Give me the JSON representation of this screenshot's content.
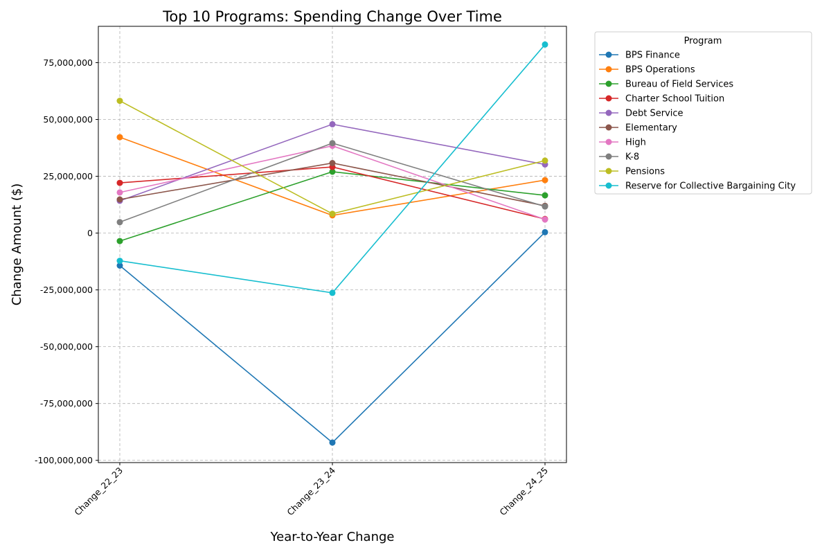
{
  "chart_data": {
    "type": "line",
    "title": "Top 10 Programs: Spending Change Over Time",
    "xlabel": "Year-to-Year Change",
    "ylabel": "Change Amount ($)",
    "categories": [
      "Change_22_23",
      "Change_23_24",
      "Change_24_25"
    ],
    "ylim": [
      -101000000,
      91000000
    ],
    "yticks": [
      -100000000,
      -75000000,
      -50000000,
      -25000000,
      0,
      25000000,
      50000000,
      75000000
    ],
    "ytick_labels": [
      "-100,000,000",
      "-75,000,000",
      "-50,000,000",
      "-25,000,000",
      "0",
      "25,000,000",
      "50,000,000",
      "75,000,000"
    ],
    "grid": true,
    "legend_title": "Program",
    "legend_position": "outside-top-right",
    "series": [
      {
        "name": "BPS Finance",
        "color": "#1f77b4",
        "values": [
          -14300000,
          -92200000,
          400000
        ]
      },
      {
        "name": "BPS Operations",
        "color": "#ff7f0e",
        "values": [
          42200000,
          7800000,
          23300000
        ]
      },
      {
        "name": "Bureau of Field Services",
        "color": "#2ca02c",
        "values": [
          -3500000,
          27000000,
          16600000
        ]
      },
      {
        "name": "Charter School Tuition",
        "color": "#d62728",
        "values": [
          22100000,
          29100000,
          6200000
        ]
      },
      {
        "name": "Debt Service",
        "color": "#9467bd",
        "values": [
          14200000,
          47900000,
          30200000
        ]
      },
      {
        "name": "Elementary",
        "color": "#8c564b",
        "values": [
          14800000,
          30800000,
          12000000
        ]
      },
      {
        "name": "High",
        "color": "#e377c2",
        "values": [
          17900000,
          38400000,
          6000000
        ]
      },
      {
        "name": "K-8",
        "color": "#7f7f7f",
        "values": [
          4800000,
          39600000,
          11700000
        ]
      },
      {
        "name": "Pensions",
        "color": "#bcbd22",
        "values": [
          58200000,
          8500000,
          31900000
        ]
      },
      {
        "name": "Reserve for Collective Bargaining City",
        "color": "#17becf",
        "values": [
          -12200000,
          -26300000,
          83000000
        ]
      }
    ]
  }
}
